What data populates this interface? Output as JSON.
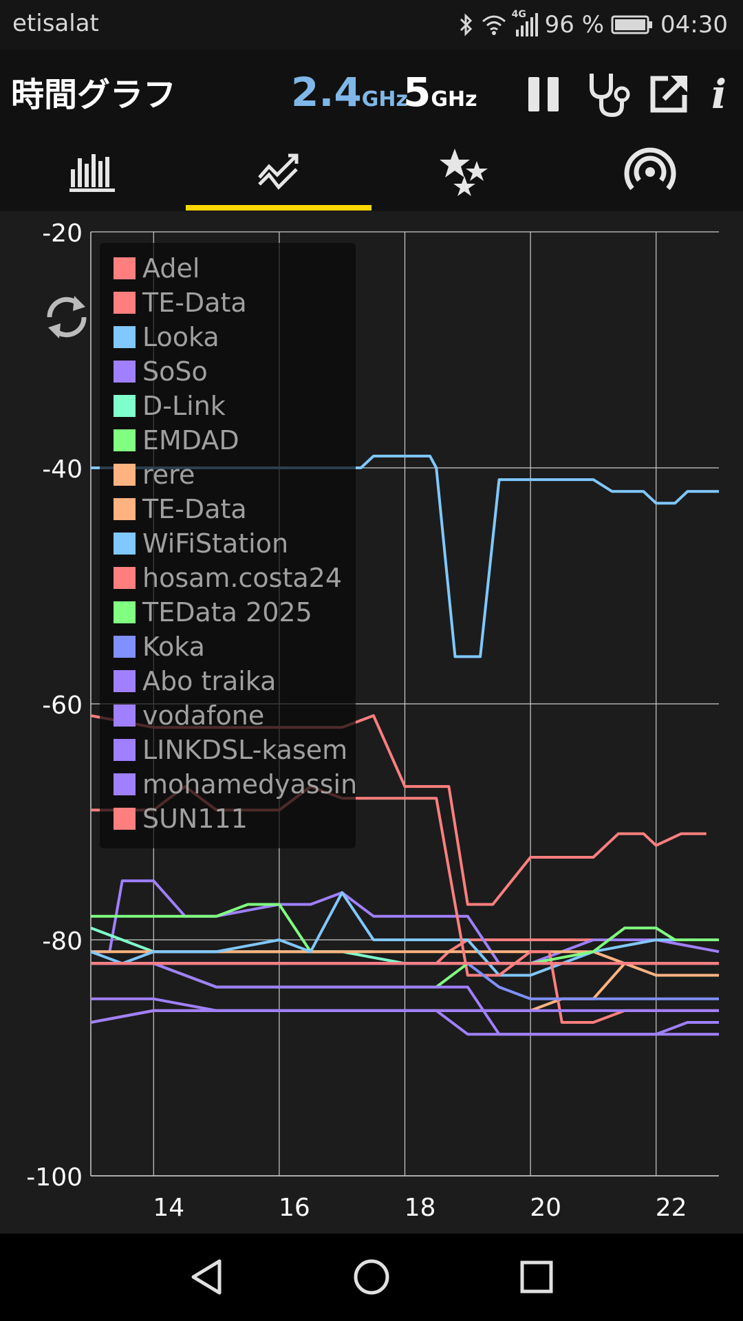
{
  "status_bar": {
    "carrier": "etisalat",
    "battery": "96 %",
    "time": "04:30",
    "network_type": "4G",
    "icons": [
      "bluetooth-icon",
      "wifi-icon",
      "signal-icon",
      "battery-icon"
    ]
  },
  "app_bar": {
    "title": "時間グラフ",
    "band_24": {
      "num": "2.4",
      "unit": "GHz"
    },
    "band_5": {
      "num": "5",
      "unit": "GHz"
    },
    "actions": [
      "pause-icon",
      "stethoscope-icon",
      "share-icon",
      "info-icon"
    ]
  },
  "tabs": [
    {
      "name": "tab-channel-graph",
      "icon": "bar-chart-icon",
      "selected": false
    },
    {
      "name": "tab-time-graph",
      "icon": "trend-icon",
      "selected": true
    },
    {
      "name": "tab-channel-rating",
      "icon": "stars-icon",
      "selected": false
    },
    {
      "name": "tab-access-points",
      "icon": "wifi-signal-icon",
      "selected": false
    }
  ],
  "colors": {
    "accent": "#ffd700",
    "band_selected": "#7fb7e8",
    "background": "#1c1c1c"
  },
  "chart_data": {
    "type": "line",
    "title": "",
    "xlabel": "",
    "ylabel": "",
    "xlim": [
      13,
      23
    ],
    "ylim": [
      -100,
      -20
    ],
    "x_ticks": [
      "14",
      "16",
      "18",
      "20",
      "22"
    ],
    "x_tick_values": [
      14,
      16,
      18,
      20,
      22
    ],
    "y_ticks": [
      "-20",
      "-40",
      "-60",
      "-80",
      "-100"
    ],
    "y_tick_values": [
      -20,
      -40,
      -60,
      -80,
      -100
    ],
    "grid": true,
    "legend_position": "top-left",
    "series": [
      {
        "name": "Adel",
        "color": "#ff7f7f",
        "x": [
          13,
          14,
          15,
          16,
          17,
          17.5,
          18,
          18.5,
          18.7,
          19,
          19.4,
          20,
          21,
          21.4,
          21.8,
          22,
          22.4,
          22.8
        ],
        "y": [
          -61,
          -62,
          -62,
          -62,
          -62,
          -61,
          -67,
          -67,
          -67,
          -77,
          -77,
          -73,
          -73,
          -71,
          -71,
          -72,
          -71,
          -71
        ]
      },
      {
        "name": "TE-Data",
        "color": "#ff7f7f",
        "x": [
          13,
          15,
          16,
          17,
          18,
          18.5,
          18.7,
          19,
          19.4,
          20,
          20.5,
          21,
          22,
          23
        ],
        "y": [
          -82,
          -82,
          -82,
          -82,
          -82,
          -82,
          -81,
          -80,
          -80,
          -80,
          -80,
          -80,
          -80,
          -80
        ]
      },
      {
        "name": "Looka",
        "color": "#80c8ff",
        "x": [
          13,
          14,
          15,
          16,
          17,
          17.3,
          17.5,
          18,
          18.4,
          18.5,
          18.8,
          19.2,
          19.5,
          20,
          21,
          21.3,
          21.8,
          22,
          22.3,
          22.5,
          23
        ],
        "y": [
          -40,
          -40,
          -40,
          -40,
          -40,
          -40,
          -39,
          -39,
          -39,
          -40,
          -56,
          -56,
          -41,
          -41,
          -41,
          -42,
          -42,
          -43,
          -43,
          -42,
          -42
        ]
      },
      {
        "name": "SoSo",
        "color": "#a080ff",
        "x": [
          13,
          13.3,
          13.5,
          14,
          14.5,
          15,
          16,
          16.5,
          17,
          17.5,
          18,
          18.5,
          19,
          19.5,
          20,
          21,
          22,
          23
        ],
        "y": [
          -81,
          -81,
          -75,
          -75,
          -78,
          -78,
          -77,
          -77,
          -76,
          -78,
          -78,
          -78,
          -78,
          -82,
          -82,
          -80,
          -80,
          -81
        ]
      },
      {
        "name": "D-Link",
        "color": "#80ffcc",
        "x": [
          13,
          14,
          15,
          16,
          17,
          18,
          18.5
        ],
        "y": [
          -79,
          -81,
          -81,
          -81,
          -81,
          -82,
          -82
        ]
      },
      {
        "name": "EMDAD",
        "color": "#80ff80",
        "x": [
          13,
          14,
          15,
          15.5,
          16,
          16.5,
          17,
          17.5
        ],
        "y": [
          -78,
          -78,
          -78,
          -77,
          -77,
          -81,
          -81,
          -81
        ]
      },
      {
        "name": "rere",
        "color": "#ffb380",
        "x": [
          13,
          14,
          15,
          16,
          17,
          18,
          18.5,
          19,
          20,
          21,
          22,
          23
        ],
        "y": [
          -81,
          -81,
          -81,
          -81,
          -81,
          -81,
          -81,
          -81,
          -81,
          -81,
          -83,
          -83
        ]
      },
      {
        "name": "TE-Data",
        "color": "#ffb380",
        "x": [
          13,
          14,
          15,
          16,
          17,
          18,
          18.5,
          19.5,
          20,
          20.5,
          21,
          21.5,
          22,
          23
        ],
        "y": [
          -87,
          -86,
          -86,
          -86,
          -86,
          -86,
          -86,
          -86,
          -86,
          -85,
          -85,
          -82,
          -82,
          -82
        ]
      },
      {
        "name": "WiFiStation",
        "color": "#80c8ff",
        "x": [
          13,
          13.5,
          14,
          15,
          16,
          16.5,
          17,
          17.5,
          18,
          18.5,
          19,
          19.5,
          20,
          21,
          22,
          23
        ],
        "y": [
          -81,
          -82,
          -81,
          -81,
          -80,
          -81,
          -76,
          -80,
          -80,
          -80,
          -80,
          -83,
          -83,
          -81,
          -80,
          -80
        ]
      },
      {
        "name": "hosam.costa24",
        "color": "#ff7f7f",
        "x": [
          13,
          14,
          14.5,
          15,
          16,
          16.5,
          17,
          17.5,
          18,
          18.5,
          19,
          19.5,
          20,
          20.3,
          20.5,
          21,
          21.5,
          22,
          23
        ],
        "y": [
          -69,
          -69,
          -67,
          -69,
          -69,
          -67,
          -68,
          -68,
          -68,
          -68,
          -83,
          -83,
          -81,
          -81,
          -87,
          -87,
          -86,
          -86,
          -86
        ]
      },
      {
        "name": "TEData 2025",
        "color": "#80ff80",
        "x": [
          13,
          14,
          15,
          16,
          17,
          18,
          18.5,
          19,
          20,
          21,
          21.5,
          22,
          22.3,
          23
        ],
        "y": [
          -82,
          -82,
          -84,
          -84,
          -84,
          -84,
          -84,
          -82,
          -82,
          -81,
          -79,
          -79,
          -80,
          -80
        ]
      },
      {
        "name": "Koka",
        "color": "#8090ff",
        "x": [
          13,
          14,
          15,
          16,
          17,
          18,
          18.5,
          19,
          19.5,
          20,
          21,
          22,
          23
        ],
        "y": [
          -82,
          -82,
          -82,
          -82,
          -82,
          -82,
          -82,
          -82,
          -84,
          -85,
          -85,
          -85,
          -85
        ]
      },
      {
        "name": "Abo traika",
        "color": "#a080ff",
        "x": [
          13,
          14,
          15,
          15.5,
          16,
          17,
          18,
          18.5,
          19,
          19.5,
          20,
          21,
          22,
          23
        ],
        "y": [
          -82,
          -82,
          -84,
          -84,
          -84,
          -84,
          -84,
          -84,
          -84,
          -88,
          -88,
          -88,
          -88,
          -88
        ]
      },
      {
        "name": "vodafone",
        "color": "#a080ff",
        "x": [
          13,
          14,
          15,
          16,
          17,
          18,
          18.5,
          19,
          20,
          21,
          22,
          23
        ],
        "y": [
          -85,
          -85,
          -86,
          -86,
          -86,
          -86,
          -86,
          -86,
          -86,
          -86,
          -86,
          -86
        ]
      },
      {
        "name": "LINKDSL-kasem",
        "color": "#a080ff",
        "x": [
          13,
          14,
          15,
          16,
          17,
          18,
          18.5,
          19,
          20,
          21,
          22,
          22.5,
          23
        ],
        "y": [
          -87,
          -86,
          -86,
          -86,
          -86,
          -86,
          -86,
          -88,
          -88,
          -88,
          -88,
          -87,
          -87
        ]
      },
      {
        "name": "mohamedyassin",
        "color": "#a080ff",
        "x": [
          13,
          14,
          15,
          16,
          17,
          18,
          18.5,
          19,
          20,
          21,
          22,
          23
        ],
        "y": [
          -82,
          -82,
          -82,
          -82,
          -82,
          -82,
          -82,
          -82,
          -82,
          -82,
          -82,
          -82
        ]
      },
      {
        "name": "SUN111",
        "color": "#ff7f7f",
        "x": [
          13,
          14,
          15,
          16,
          17,
          18,
          18.5,
          19,
          20,
          21,
          22,
          23
        ],
        "y": [
          -82,
          -82,
          -82,
          -82,
          -82,
          -82,
          -82,
          -82,
          -82,
          -82,
          -82,
          -82
        ]
      }
    ]
  },
  "nav_bar": {
    "buttons": [
      "back-icon",
      "home-icon",
      "recents-icon"
    ]
  }
}
